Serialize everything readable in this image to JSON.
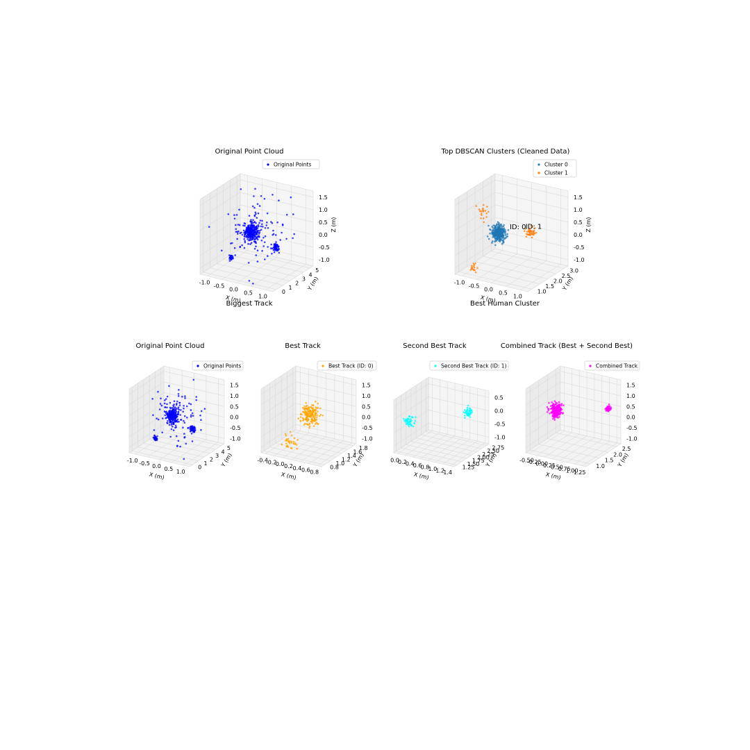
{
  "figure": {
    "mid_titles": [
      "Biggest Track",
      "Best Human Cluster"
    ]
  },
  "chart_data": [
    {
      "type": "scatter3d",
      "title": "Original Point Cloud",
      "xlabel": "X (m)",
      "ylabel": "Y (m)",
      "zlabel": "Z (m)",
      "xlim": [
        -1.3,
        1.3
      ],
      "ylim": [
        -0.5,
        5.5
      ],
      "zlim": [
        -1.5,
        1.6
      ],
      "xticks": [
        "-1.0",
        "-0.5",
        "0.0",
        "0.5",
        "1.0"
      ],
      "yticks": [
        "0",
        "1",
        "2",
        "3",
        "4",
        "5"
      ],
      "zticks": [
        "1.5",
        "1.0",
        "0.5",
        "0.0",
        "-0.5",
        "-1.0"
      ],
      "legend_position": "upper right",
      "series": [
        {
          "name": "Original Points",
          "color": "#0000ff",
          "count": 420,
          "points": [
            [
              0.2,
              2.5,
              -0.2
            ],
            [
              0.5,
              5,
              -0.5
            ],
            [
              0.4,
              0.4,
              -0.8
            ],
            [
              -1,
              3,
              1.2
            ],
            [
              0.9,
              1.5,
              -1.2
            ]
          ]
        }
      ]
    },
    {
      "type": "scatter3d",
      "title": "Top DBSCAN Clusters (Cleaned Data)",
      "xlabel": "X (m)",
      "ylabel": "Y (m)",
      "zlabel": "Z (m)",
      "xlim": [
        -1.3,
        1.3
      ],
      "ylim": [
        0.7,
        3.2
      ],
      "zlim": [
        -1.5,
        1.6
      ],
      "xticks": [
        "-1.0",
        "-0.5",
        "0.0",
        "0.5",
        "1.0"
      ],
      "yticks": [
        "1.0",
        "1.5",
        "2.0",
        "2.5",
        "3.0"
      ],
      "zticks": [
        "1.5",
        "1.0",
        "0.5",
        "0.0",
        "-0.5",
        "-1.0"
      ],
      "legend_position": "upper right",
      "annotations": [
        {
          "text": "ID: 0",
          "x": 0.2,
          "y": 1.8,
          "z": 0.1
        },
        {
          "text": "ID: 1",
          "x": 0.7,
          "y": 2.7,
          "z": 0.2
        }
      ],
      "series": [
        {
          "name": "Cluster 0",
          "color": "#1f77b4",
          "count": 320,
          "points": [
            [
              0.0,
              1.5,
              0.0
            ],
            [
              -0.3,
              1.7,
              -0.5
            ],
            [
              0.2,
              1.6,
              0.6
            ]
          ]
        },
        {
          "name": "Cluster 1",
          "color": "#ff7f0e",
          "count": 80,
          "points": [
            [
              0.8,
              2.8,
              -0.3
            ],
            [
              -0.6,
              1.8,
              0.8
            ],
            [
              1.0,
              2.9,
              -1.0
            ]
          ]
        }
      ]
    },
    {
      "type": "scatter3d",
      "title": "Original Point Cloud",
      "xlabel": "X (m)",
      "ylabel": "Y (m)",
      "zlabel": "",
      "xlim": [
        -1.3,
        1.3
      ],
      "ylim": [
        -0.5,
        5.5
      ],
      "zlim": [
        -1.5,
        1.6
      ],
      "xticks": [
        "-1.0",
        "-0.5",
        "0.0",
        "0.5",
        "1.0"
      ],
      "yticks": [
        "0",
        "1",
        "2",
        "3",
        "4",
        "5"
      ],
      "zticks": [
        "1.5",
        "1.0",
        "0.5",
        "0.0",
        "-0.5",
        "-1.0"
      ],
      "legend_position": "upper right",
      "series": [
        {
          "name": "Original Points",
          "color": "#0000ff",
          "count": 380,
          "points": [
            [
              0.2,
              2.5,
              -0.2
            ],
            [
              0.5,
              5,
              -0.5
            ],
            [
              0.4,
              0.4,
              -0.8
            ]
          ]
        }
      ]
    },
    {
      "type": "scatter3d",
      "title": "Best Track",
      "xlabel": "X (m)",
      "ylabel": "Y (m)",
      "zlabel": "",
      "xlim": [
        -0.5,
        0.85
      ],
      "ylim": [
        0.7,
        1.9
      ],
      "zlim": [
        -1.5,
        1.6
      ],
      "xticks": [
        "-0.4",
        "-0.2",
        "0.0",
        "0.2",
        "0.4",
        "0.6",
        "0.8"
      ],
      "yticks": [
        "0.8",
        "1.0",
        "1.2",
        "1.4",
        "1.6",
        "1.8"
      ],
      "zticks": [
        "1.5",
        "1.0",
        "0.5",
        "0.0",
        "-0.5",
        "-1.0"
      ],
      "legend_position": "upper right",
      "series": [
        {
          "name": "Best Track (ID: 0)",
          "color": "#ffa500",
          "count": 210,
          "points": [
            [
              0.2,
              1.3,
              0.0
            ],
            [
              -0.3,
              1.0,
              -1.2
            ],
            [
              0.6,
              1.7,
              0.4
            ]
          ]
        }
      ]
    },
    {
      "type": "scatter3d",
      "title": "Second Best Track",
      "xlabel": "X (m)",
      "ylabel": "Y (m)",
      "zlabel": "",
      "xlim": [
        -0.05,
        1.45
      ],
      "ylim": [
        1.2,
        2.8
      ],
      "zlim": [
        -1.3,
        0.8
      ],
      "xticks": [
        "0.0",
        "0.2",
        "0.4",
        "0.6",
        "0.8",
        "1.0",
        "1.2",
        "1.4"
      ],
      "yticks": [
        "1.25",
        "1.50",
        "1.75",
        "2.00",
        "2.25",
        "2.50",
        "2.75"
      ],
      "zticks": [
        "0.5",
        "0.0",
        "-0.5",
        "-1.0"
      ],
      "legend_position": "upper right",
      "series": [
        {
          "name": "Second Best Track (ID: 1)",
          "color": "#00ffff",
          "count": 90,
          "points": [
            [
              0.1,
              1.5,
              0.0
            ],
            [
              1.2,
              2.6,
              -0.2
            ],
            [
              1.0,
              2.4,
              -1.1
            ]
          ]
        }
      ]
    },
    {
      "type": "scatter3d",
      "title": "Combined Track (Best + Second Best)",
      "xlabel": "X (m)",
      "ylabel": "Y (m)",
      "zlabel": "",
      "xlim": [
        -0.6,
        1.35
      ],
      "ylim": [
        0.8,
        2.8
      ],
      "zlim": [
        -1.5,
        1.6
      ],
      "xticks": [
        "-0.50",
        "-0.25",
        "0.00",
        "0.25",
        "0.50",
        "0.75",
        "1.00",
        "1.25"
      ],
      "yticks": [
        "1.0",
        "1.5",
        "2.0",
        "2.5"
      ],
      "zticks": [
        "1.5",
        "1.0",
        "0.5",
        "0.0",
        "-0.5",
        "-1.0"
      ],
      "legend_position": "upper right",
      "series": [
        {
          "name": "Combined Track",
          "color": "#ff00ff",
          "count": 300,
          "points": [
            [
              0.2,
              1.4,
              0.0
            ],
            [
              1.1,
              2.6,
              -0.2
            ],
            [
              -0.3,
              1.0,
              -1.2
            ]
          ]
        }
      ]
    }
  ]
}
